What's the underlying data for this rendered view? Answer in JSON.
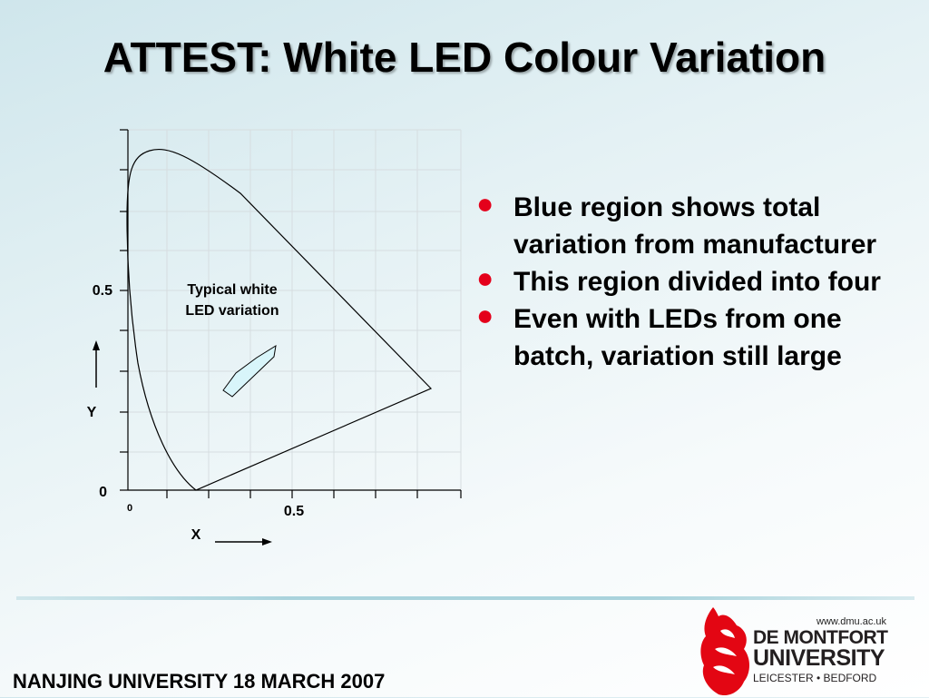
{
  "title": "ATTEST: White LED Colour Variation",
  "diagram": {
    "annotation_line1": "Typical white",
    "annotation_line2": "LED variation",
    "y_tick_top": "0.5",
    "y_tick_bottom": "0",
    "x_tick_origin": "0",
    "x_tick_mid": "0.5",
    "y_axis_label": "Y",
    "x_axis_label": "X",
    "colors": {
      "region_fill": "#d8f5fa",
      "outline": "#000000",
      "grid": "#d6dde0"
    }
  },
  "bullets": [
    "Blue region shows total variation from manufacturer",
    "This region divided into four",
    "Even with LEDs from one batch, variation still large"
  ],
  "bullet_color": "#e4001b",
  "footer": "NANJING UNIVERSITY 18 MARCH 2007",
  "logo": {
    "url": "www.dmu.ac.uk",
    "line1": "DE MONTFORT",
    "line2": "UNIVERSITY",
    "line3": "LEICESTER • BEDFORD",
    "brand_color": "#e30613"
  }
}
